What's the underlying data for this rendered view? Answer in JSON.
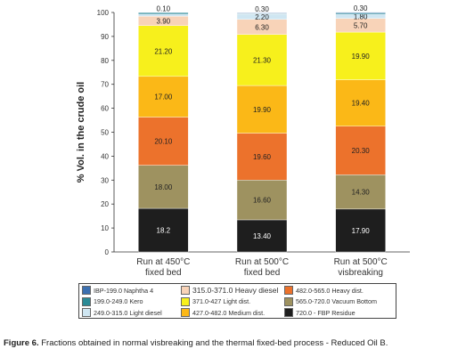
{
  "chart_data": {
    "type": "bar",
    "stacked": true,
    "ylabel": "% Vol. in the crude oil",
    "ylim": [
      0,
      100
    ],
    "yticks": [
      0,
      10,
      20,
      30,
      40,
      50,
      60,
      70,
      80,
      90,
      100
    ],
    "categories": [
      {
        "line1": "Run at 450°C",
        "line2": "fixed bed"
      },
      {
        "line1": "Run at 500°C",
        "line2": "fixed bed"
      },
      {
        "line1": "Run at 500°C",
        "line2": "visbreaking"
      }
    ],
    "series": [
      {
        "name": "720.0 - FBP Residue",
        "color": "#1e1e1e",
        "label_color": "#ffffff",
        "values": [
          18.2,
          13.4,
          17.9
        ],
        "labels": [
          "18.2",
          "13.40",
          "17.90"
        ]
      },
      {
        "name": "565.0-720.0 Vacuum Bottom",
        "color": "#9e9260",
        "label_color": "#222222",
        "values": [
          18.0,
          16.6,
          14.3
        ],
        "labels": [
          "18.00",
          "16.60",
          "14.30"
        ]
      },
      {
        "name": "482.0-565.0 Heavy dist.",
        "color": "#ec722c",
        "label_color": "#222222",
        "values": [
          20.1,
          19.6,
          20.3
        ],
        "labels": [
          "20.10",
          "19.60",
          "20.30"
        ]
      },
      {
        "name": "427.0-482.0 Medium dist.",
        "color": "#fbb817",
        "label_color": "#222222",
        "values": [
          17.0,
          19.9,
          19.4
        ],
        "labels": [
          "17.00",
          "19.90",
          "19.40"
        ]
      },
      {
        "name": "371.0-427 Light dist.",
        "color": "#f7f01c",
        "label_color": "#222222",
        "values": [
          21.2,
          21.3,
          19.9
        ],
        "labels": [
          "21.20",
          "21.30",
          "19.90"
        ]
      },
      {
        "name": "315.0-371.0 Heavy diesel",
        "color": "#f8d3b8",
        "label_color": "#222222",
        "values": [
          3.9,
          6.3,
          5.7
        ],
        "labels": [
          "3.90",
          "6.30",
          "5.70"
        ]
      },
      {
        "name": "249.0-315.0 Light diesel",
        "color": "#cfe6f2",
        "label_color": "#222222",
        "values": [
          0.9,
          2.2,
          1.8
        ],
        "labels": [
          "",
          "2.20",
          "1.80"
        ]
      },
      {
        "name": "199.0-249.0 Kero",
        "color": "#2a8a96",
        "label_color": "#222222",
        "values": [
          0.6,
          0.2,
          0.5
        ],
        "labels": [
          "",
          "",
          ""
        ]
      },
      {
        "name": "IBP-199.0 Naphtha 4",
        "color": "#3b6fb0",
        "label_color": "#222222",
        "values": [
          0.1,
          0.3,
          0.3
        ],
        "labels": [
          "0.10",
          "0.30",
          "0.30"
        ]
      }
    ]
  },
  "legend_order": [
    "IBP-199.0 Naphtha 4",
    "199.0-249.0 Kero",
    "249.0-315.0 Light diesel",
    "315.0-371.0 Heavy diesel",
    "371.0-427 Light dist.",
    "427.0-482.0 Medium dist.",
    "482.0-565.0 Heavy dist.",
    "565.0-720.0 Vacuum Bottom",
    "720.0 - FBP Residue"
  ],
  "caption": {
    "label": "Figure 6.",
    "text": "Fractions obtained in normal visbreaking and the thermal fixed-bed process - Reduced Oil B."
  }
}
